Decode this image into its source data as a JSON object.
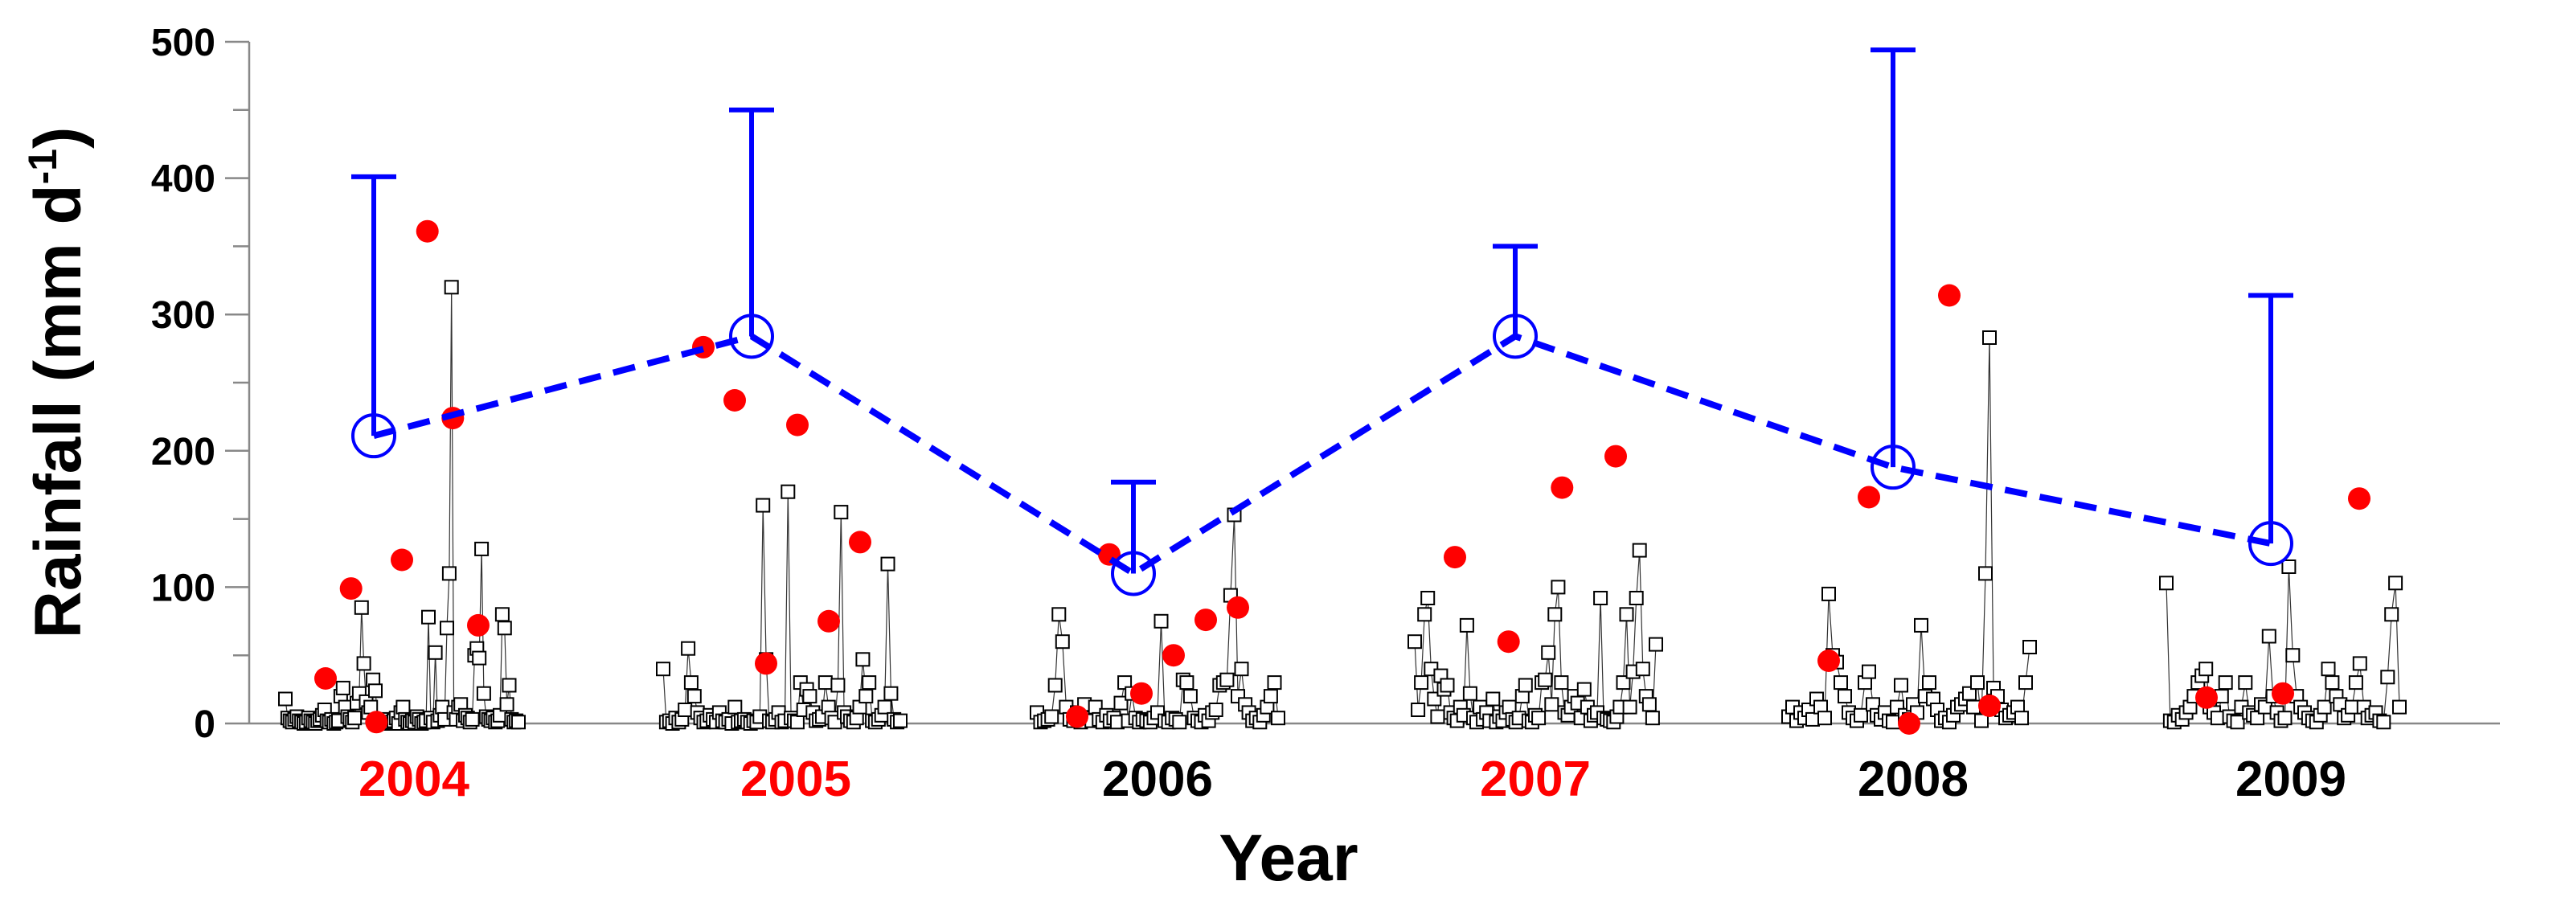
{
  "chart_data": {
    "type": "scatter",
    "ylabel": "Rainfall (mm d",
    "ylabel_sup": "-1",
    "ylabel_end": ")",
    "xlabel": "Year",
    "ylim": [
      0,
      500
    ],
    "yticks": [
      "0",
      "100",
      "200",
      "300",
      "400",
      "500"
    ],
    "years": [
      {
        "label": "2004",
        "color": "#ff0000"
      },
      {
        "label": "2005",
        "color": "#ff0000"
      },
      {
        "label": "2006",
        "color": "#000000"
      },
      {
        "label": "2007",
        "color": "#ff0000"
      },
      {
        "label": "2008",
        "color": "#000000"
      },
      {
        "label": "2009",
        "color": "#000000"
      }
    ],
    "colors": {
      "daily": "#000000",
      "extreme": "#ff0000",
      "mean": "#0000ff"
    },
    "series": [
      {
        "role": "daily",
        "years": [
          {
            "year": "2004",
            "values": [
              18,
              4,
              2,
              1,
              3,
              5,
              2,
              1,
              0,
              1,
              4,
              2,
              1,
              0,
              2,
              3,
              6,
              10,
              2,
              1,
              3,
              0,
              1,
              2,
              20,
              26,
              12,
              5,
              3,
              1,
              4,
              15,
              22,
              85,
              44,
              16,
              8,
              12,
              32,
              24,
              2,
              1,
              0,
              1,
              3,
              0,
              1,
              2,
              4,
              0,
              8,
              12,
              3,
              1,
              0,
              2,
              1,
              5,
              3,
              0,
              1,
              2,
              78,
              4,
              1,
              52,
              2,
              6,
              12,
              3,
              70,
              110,
              320,
              8,
              3,
              12,
              14,
              2,
              6,
              4,
              1,
              3,
              50,
              55,
              48,
              128,
              22,
              5,
              3,
              2,
              4,
              1,
              2,
              6,
              80,
              70,
              14,
              28,
              3,
              1,
              2,
              1
            ]
          },
          {
            "year": "2005",
            "values": [
              40,
              1,
              2,
              0,
              4,
              1,
              3,
              10,
              55,
              30,
              20,
              8,
              4,
              1,
              2,
              6,
              3,
              1,
              8,
              2,
              1,
              3,
              0,
              12,
              1,
              2,
              3,
              1,
              0,
              2,
              1,
              5,
              160,
              47,
              2,
              1,
              3,
              8,
              1,
              2,
              170,
              4,
              2,
              1,
              30,
              10,
              25,
              20,
              8,
              2,
              3,
              5,
              30,
              12,
              4,
              1,
              28,
              155,
              8,
              5,
              2,
              1,
              4,
              12,
              47,
              20,
              30,
              2,
              1,
              3,
              6,
              12,
              117,
              22,
              3,
              1,
              2
            ]
          },
          {
            "year": "2006",
            "values": [
              8,
              1,
              2,
              3,
              5,
              28,
              80,
              60,
              12,
              3,
              2,
              8,
              1,
              14,
              4,
              2,
              12,
              3,
              1,
              6,
              2,
              4,
              1,
              15,
              30,
              2,
              22,
              4,
              1,
              3,
              2,
              1,
              4,
              8,
              75,
              2,
              1,
              4,
              3,
              1,
              32,
              30,
              20,
              4,
              2,
              1,
              6,
              2,
              8,
              10,
              28,
              30,
              32,
              94,
              153,
              20,
              40,
              14,
              8,
              2,
              4,
              1,
              6,
              12,
              20,
              30,
              4
            ]
          },
          {
            "year": "2007",
            "values": [
              60,
              10,
              30,
              80,
              92,
              40,
              18,
              5,
              35,
              25,
              28,
              8,
              4,
              2,
              12,
              6,
              72,
              22,
              4,
              1,
              12,
              3,
              8,
              2,
              18,
              1,
              5,
              2,
              8,
              12,
              3,
              1,
              4,
              20,
              28,
              2,
              1,
              6,
              4,
              30,
              32,
              52,
              14,
              80,
              100,
              30,
              8,
              6,
              12,
              20,
              15,
              4,
              25,
              12,
              2,
              6,
              8,
              92,
              4,
              3,
              2,
              1,
              5,
              12,
              30,
              80,
              12,
              38,
              92,
              127,
              40,
              20,
              14,
              4,
              58
            ]
          },
          {
            "year": "2008",
            "values": [
              5,
              12,
              2,
              8,
              4,
              10,
              3,
              18,
              12,
              4,
              95,
              50,
              45,
              30,
              20,
              8,
              4,
              2,
              6,
              30,
              38,
              14,
              6,
              3,
              8,
              2,
              1,
              12,
              28,
              6,
              3,
              14,
              8,
              72,
              20,
              30,
              18,
              10,
              2,
              4,
              1,
              6,
              12,
              14,
              18,
              22,
              12,
              30,
              2,
              110,
              283,
              26,
              20,
              10,
              4,
              6,
              8,
              12,
              4,
              30,
              56
            ]
          },
          {
            "year": "2009",
            "values": [
              103,
              2,
              1,
              6,
              3,
              8,
              12,
              20,
              30,
              35,
              40,
              12,
              8,
              4,
              20,
              30,
              5,
              2,
              1,
              12,
              30,
              8,
              6,
              4,
              14,
              12,
              64,
              20,
              8,
              2,
              4,
              115,
              50,
              20,
              12,
              8,
              4,
              2,
              1,
              6,
              12,
              40,
              30,
              20,
              14,
              4,
              6,
              12,
              30,
              44,
              12,
              4,
              6,
              8,
              2,
              1,
              34,
              80,
              103,
              12
            ]
          }
        ]
      },
      {
        "role": "extreme",
        "years": [
          {
            "year": "2004",
            "values": [
              33,
              99,
              1,
              120,
              361,
              224,
              72
            ]
          },
          {
            "year": "2005",
            "values": [
              276,
              237,
              44,
              219,
              75,
              133
            ]
          },
          {
            "year": "2006",
            "values": [
              5,
              124,
              22,
              50,
              76,
              85
            ]
          },
          {
            "year": "2007",
            "values": [
              122,
              60,
              173,
              196
            ]
          },
          {
            "year": "2008",
            "values": [
              46,
              166,
              0,
              314,
              13
            ]
          },
          {
            "year": "2009",
            "values": [
              19,
              22,
              165
            ]
          }
        ]
      },
      {
        "role": "mean",
        "years": [
          {
            "year": "2004",
            "mean": 211,
            "upper": 401
          },
          {
            "year": "2005",
            "mean": 284,
            "upper": 450
          },
          {
            "year": "2006",
            "mean": 110,
            "upper": 177
          },
          {
            "year": "2007",
            "mean": 284,
            "upper": 350
          },
          {
            "year": "2008",
            "mean": 188,
            "upper": 494
          },
          {
            "year": "2009",
            "mean": 132,
            "upper": 314
          }
        ]
      }
    ]
  }
}
